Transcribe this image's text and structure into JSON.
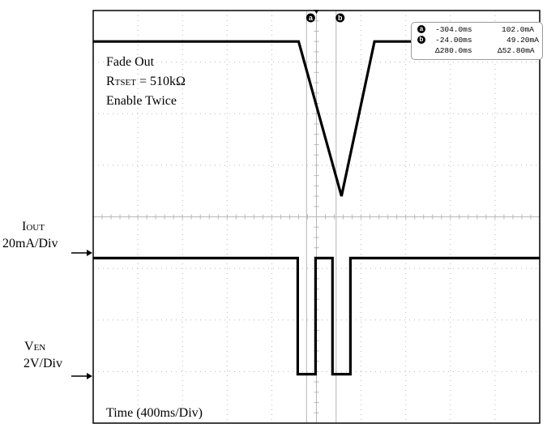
{
  "chart_data": {
    "type": "line",
    "title": "",
    "divisions": {
      "x": 10,
      "y": 8
    },
    "x_scale": "400ms/Div",
    "series": [
      {
        "name": "IOUT",
        "scale": "20mA/Div",
        "x": [
          0,
          4.6,
          5.56,
          6.3,
          10
        ],
        "y": [
          7.4,
          7.4,
          4.4,
          7.4,
          7.4
        ]
      },
      {
        "name": "VEN",
        "scale": "2V/Div",
        "x": [
          0,
          4.58,
          4.58,
          4.98,
          4.98,
          5.36,
          5.36,
          5.76,
          5.76,
          10
        ],
        "y": [
          3.2,
          3.2,
          0.95,
          0.95,
          3.2,
          3.2,
          0.95,
          0.95,
          3.2,
          3.2
        ]
      }
    ],
    "cursors": [
      {
        "id": "a",
        "x": 4.78,
        "time": "-304.0ms",
        "value": "102.0mA"
      },
      {
        "id": "b",
        "x": 5.44,
        "time": "-24.00ms",
        "value": "49.20mA"
      }
    ],
    "delta": {
      "time": "Δ280.0ms",
      "value": "Δ52.80mA"
    },
    "annotations": {
      "line1": "Fade Out",
      "rtset_main": "R",
      "rtset_sub": "TSET",
      "rtset_value": " = 510kΩ",
      "line3": "Enable Twice",
      "time": "Time (400ms/Div)"
    },
    "channel_labels": {
      "iout_main": "I",
      "iout_sub": "OUT",
      "iout_scale": "20mA/Div",
      "ven_main": "V",
      "ven_sub": "EN",
      "ven_scale": "2V/Div"
    },
    "colors": {
      "trace": "#000000",
      "grid": "#b8b8b8",
      "cursor": "#c0c0c0",
      "arrow": "#000000"
    }
  }
}
